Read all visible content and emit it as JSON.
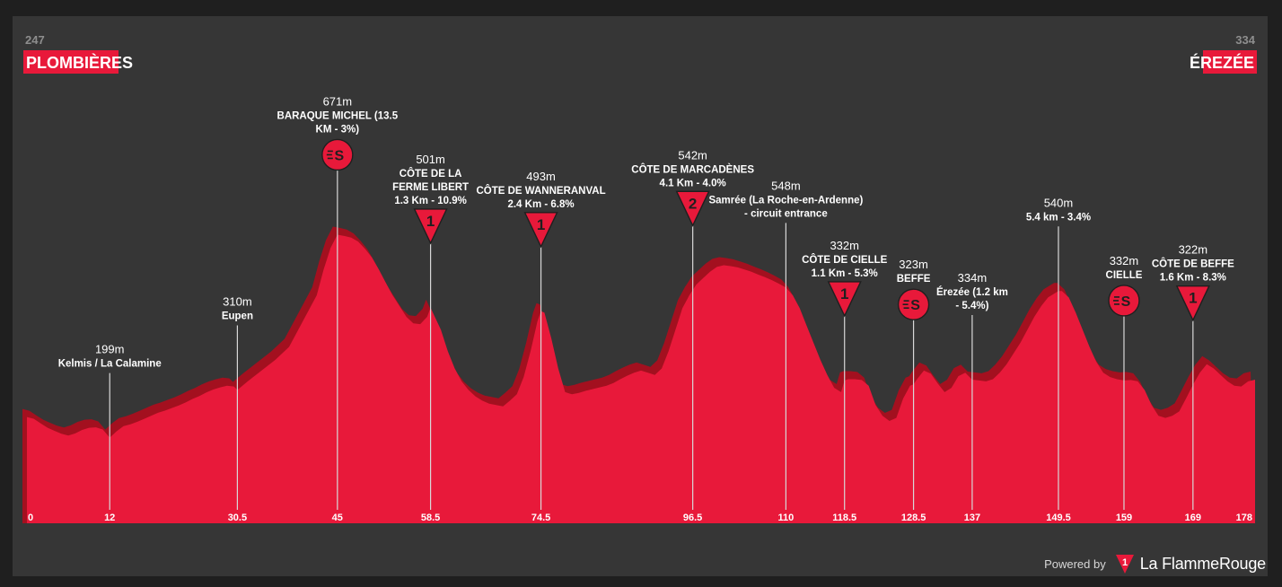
{
  "start": {
    "altitude": "247",
    "name": "PLOMBIÈRES"
  },
  "finish": {
    "altitude": "334",
    "name": "ÉREZÉE"
  },
  "branding": {
    "powered": "Powered by",
    "name": "La FlammeRouge",
    "logo_glyph": "1"
  },
  "colors": {
    "profile_main": "#e8193a",
    "profile_shadow": "#a3101f",
    "frame": "#363636",
    "label_bg": "#e8193a"
  },
  "chart_data": {
    "type": "area",
    "x_unit": "km",
    "x_range": [
      0,
      178
    ],
    "y_range": [
      0,
      720
    ],
    "x_ticks": [
      "0",
      "12",
      "30.5",
      "45",
      "58.5",
      "74.5",
      "96.5",
      "110",
      "118.5",
      "128.5",
      "137",
      "149.5",
      "159",
      "169",
      "178"
    ],
    "profile": [
      [
        0,
        247
      ],
      [
        1,
        243
      ],
      [
        2,
        232
      ],
      [
        3,
        222
      ],
      [
        4,
        215
      ],
      [
        5,
        208
      ],
      [
        6,
        204
      ],
      [
        7,
        209
      ],
      [
        8,
        217
      ],
      [
        9,
        222
      ],
      [
        10,
        223
      ],
      [
        11,
        218
      ],
      [
        12,
        199
      ],
      [
        13,
        214
      ],
      [
        14,
        226
      ],
      [
        15,
        230
      ],
      [
        16,
        236
      ],
      [
        17,
        243
      ],
      [
        18,
        250
      ],
      [
        19,
        257
      ],
      [
        20,
        262
      ],
      [
        21,
        268
      ],
      [
        22,
        274
      ],
      [
        23,
        281
      ],
      [
        24,
        289
      ],
      [
        25,
        296
      ],
      [
        26,
        304
      ],
      [
        27,
        311
      ],
      [
        28,
        316
      ],
      [
        29,
        320
      ],
      [
        30,
        318
      ],
      [
        30.5,
        310
      ],
      [
        32,
        330
      ],
      [
        34,
        355
      ],
      [
        36,
        380
      ],
      [
        38,
        410
      ],
      [
        40,
        470
      ],
      [
        42,
        530
      ],
      [
        43,
        590
      ],
      [
        44,
        640
      ],
      [
        45,
        671
      ],
      [
        46,
        668
      ],
      [
        47,
        664
      ],
      [
        48,
        655
      ],
      [
        49,
        638
      ],
      [
        50,
        618
      ],
      [
        51,
        590
      ],
      [
        52,
        560
      ],
      [
        53,
        530
      ],
      [
        54,
        505
      ],
      [
        55,
        480
      ],
      [
        56,
        465
      ],
      [
        57,
        463
      ],
      [
        58,
        480
      ],
      [
        58.5,
        501
      ],
      [
        60,
        450
      ],
      [
        61,
        400
      ],
      [
        62,
        360
      ],
      [
        63,
        330
      ],
      [
        64,
        310
      ],
      [
        65,
        295
      ],
      [
        66,
        285
      ],
      [
        67,
        278
      ],
      [
        68,
        275
      ],
      [
        69,
        272
      ],
      [
        70,
        285
      ],
      [
        71,
        300
      ],
      [
        72,
        340
      ],
      [
        73,
        400
      ],
      [
        74,
        470
      ],
      [
        74.5,
        493
      ],
      [
        75,
        490
      ],
      [
        76,
        430
      ],
      [
        77,
        360
      ],
      [
        78,
        305
      ],
      [
        79,
        300
      ],
      [
        80,
        303
      ],
      [
        81,
        308
      ],
      [
        82,
        312
      ],
      [
        83,
        316
      ],
      [
        84,
        320
      ],
      [
        85,
        326
      ],
      [
        86,
        335
      ],
      [
        87,
        343
      ],
      [
        88,
        350
      ],
      [
        89,
        355
      ],
      [
        90,
        350
      ],
      [
        91,
        345
      ],
      [
        92,
        360
      ],
      [
        93,
        400
      ],
      [
        94,
        450
      ],
      [
        95,
        500
      ],
      [
        96,
        530
      ],
      [
        96.5,
        542
      ],
      [
        97,
        555
      ],
      [
        98,
        570
      ],
      [
        99,
        585
      ],
      [
        100,
        596
      ],
      [
        101,
        600
      ],
      [
        102,
        598
      ],
      [
        103,
        595
      ],
      [
        104,
        590
      ],
      [
        105,
        585
      ],
      [
        106,
        578
      ],
      [
        107,
        572
      ],
      [
        108,
        565
      ],
      [
        109,
        557
      ],
      [
        110,
        548
      ],
      [
        111,
        530
      ],
      [
        112,
        500
      ],
      [
        113,
        460
      ],
      [
        114,
        420
      ],
      [
        115,
        380
      ],
      [
        116,
        345
      ],
      [
        117,
        315
      ],
      [
        118,
        305
      ],
      [
        118.5,
        332
      ],
      [
        119,
        335
      ],
      [
        120,
        335
      ],
      [
        121,
        333
      ],
      [
        122,
        320
      ],
      [
        123,
        275
      ],
      [
        124,
        250
      ],
      [
        125,
        238
      ],
      [
        126,
        245
      ],
      [
        127,
        290
      ],
      [
        128,
        320
      ],
      [
        128.5,
        323
      ],
      [
        129,
        335
      ],
      [
        130,
        355
      ],
      [
        131,
        348
      ],
      [
        132,
        325
      ],
      [
        133,
        305
      ],
      [
        134,
        315
      ],
      [
        135,
        342
      ],
      [
        136,
        350
      ],
      [
        137,
        334
      ],
      [
        138,
        332
      ],
      [
        139,
        330
      ],
      [
        140,
        335
      ],
      [
        141,
        350
      ],
      [
        142,
        370
      ],
      [
        143,
        395
      ],
      [
        144,
        420
      ],
      [
        145,
        450
      ],
      [
        146,
        480
      ],
      [
        147,
        505
      ],
      [
        148,
        525
      ],
      [
        149,
        535
      ],
      [
        149.5,
        540
      ],
      [
        150,
        540
      ],
      [
        151,
        525
      ],
      [
        152,
        490
      ],
      [
        153,
        450
      ],
      [
        154,
        410
      ],
      [
        155,
        375
      ],
      [
        156,
        350
      ],
      [
        157,
        340
      ],
      [
        158,
        335
      ],
      [
        159,
        332
      ],
      [
        160,
        333
      ],
      [
        161,
        330
      ],
      [
        162,
        310
      ],
      [
        163,
        275
      ],
      [
        164,
        250
      ],
      [
        165,
        245
      ],
      [
        166,
        250
      ],
      [
        167,
        260
      ],
      [
        168,
        290
      ],
      [
        169,
        322
      ],
      [
        170,
        350
      ],
      [
        171,
        370
      ],
      [
        172,
        360
      ],
      [
        173,
        345
      ],
      [
        174,
        330
      ],
      [
        175,
        320
      ],
      [
        176,
        318
      ],
      [
        177,
        330
      ],
      [
        178,
        334
      ]
    ],
    "points": [
      {
        "km": 12,
        "altitude": "199m",
        "lines": [
          "Kelmis / La Calamine"
        ],
        "icon": "none"
      },
      {
        "km": 30.5,
        "altitude": "310m",
        "lines": [
          "Eupen"
        ],
        "icon": "none"
      },
      {
        "km": 45,
        "altitude": "671m",
        "lines": [
          "BARAQUE MICHEL (13.5",
          "KM - 3%)"
        ],
        "icon": "sprint",
        "icon_label": "S"
      },
      {
        "km": 58.5,
        "altitude": "501m",
        "lines": [
          "CÔTE DE LA",
          "FERME LIBERT",
          "1.3 Km - 10.9%"
        ],
        "icon": "climb",
        "icon_label": "1"
      },
      {
        "km": 74.5,
        "altitude": "493m",
        "lines": [
          "CÔTE DE WANNERANVAL",
          "2.4 Km - 6.8%"
        ],
        "icon": "climb",
        "icon_label": "1"
      },
      {
        "km": 96.5,
        "altitude": "542m",
        "lines": [
          "CÔTE DE MARCADÈNES",
          "4.1 Km - 4.0%"
        ],
        "icon": "climb",
        "icon_label": "2"
      },
      {
        "km": 110,
        "altitude": "548m",
        "lines": [
          "Samrée (La Roche-en-Ardenne)",
          "- circuit entrance"
        ],
        "icon": "none"
      },
      {
        "km": 118.5,
        "altitude": "332m",
        "lines": [
          "CÔTE DE CIELLE",
          "1.1 Km - 5.3%"
        ],
        "icon": "climb",
        "icon_label": "1"
      },
      {
        "km": 128.5,
        "altitude": "323m",
        "lines": [
          "BEFFE"
        ],
        "icon": "sprint",
        "icon_label": "S"
      },
      {
        "km": 137,
        "altitude": "334m",
        "lines": [
          "Érezée (1.2 km",
          "- 5.4%)"
        ],
        "icon": "none"
      },
      {
        "km": 149.5,
        "altitude": "540m",
        "lines": [
          "5.4 km - 3.4%"
        ],
        "icon": "none"
      },
      {
        "km": 159,
        "altitude": "332m",
        "lines": [
          "CIELLE"
        ],
        "icon": "sprint",
        "icon_label": "S"
      },
      {
        "km": 169,
        "altitude": "322m",
        "lines": [
          "CÔTE DE BEFFE",
          "1.6 Km - 8.3%"
        ],
        "icon": "climb",
        "icon_label": "1"
      }
    ]
  }
}
